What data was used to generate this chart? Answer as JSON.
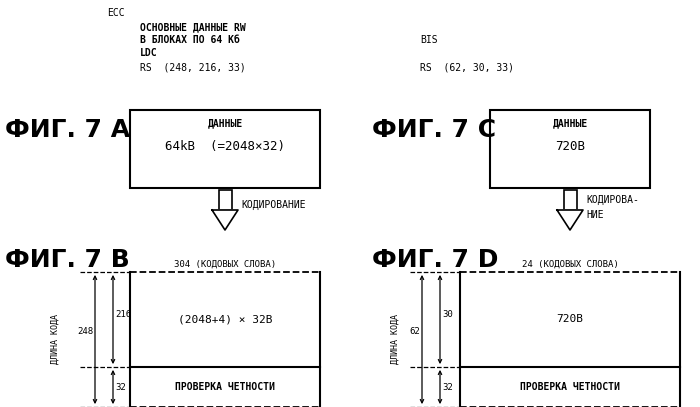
{
  "bg_color": "#ffffff",
  "fig_width": 7.0,
  "fig_height": 4.07,
  "ecc_label": "ECC",
  "ldc_lines": [
    "ОСНОВНЫЕ ДАННЫЕ RW",
    "В БЛОКАХ ПО 64 Кб",
    "LDC"
  ],
  "ldc_rs": "RS  (248, 216, 33)",
  "bis_label": "BIS",
  "bis_rs": "RS  (62, 30, 33)",
  "fig7a_label": "ФИГ. 7 А",
  "fig7b_label": "ФИГ. 7 В",
  "fig7c_label": "ФИГ. 7 С",
  "fig7d_label": "ФИГ. 7 D",
  "box_a_label1": "ДАННЫЕ",
  "box_a_label2": "64kB  (=2048×32)",
  "box_c_label1": "ДАННЫЕ",
  "box_c_label2": "720В",
  "arrow_a_label": "КОДИРОВАНИЕ",
  "arrow_c_label1": "КОДИРОВА-",
  "arrow_c_label2": "НИЕ",
  "box_b_top_label": "304 (КОДОВЫХ СЛОВА)",
  "box_b_upper_label": "(2048+4) × 32В",
  "box_b_lower_label": "ПРОВЕРКА ЧЕТНОСТИ",
  "box_d_top_label": "24 (КОДОВЫХ СЛОВА)",
  "box_d_upper_label": "720В",
  "box_d_lower_label": "ПРОВЕРКА ЧЕТНОСТИ",
  "dlina_label": "ДЛИНА КОДА"
}
